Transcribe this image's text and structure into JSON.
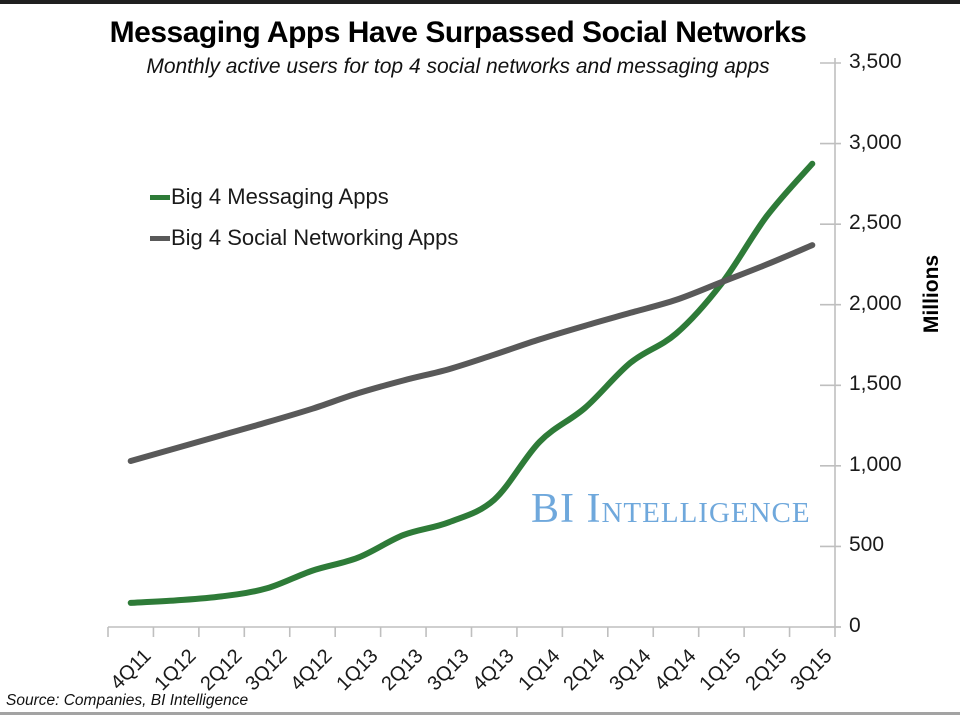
{
  "chart_data": {
    "type": "line",
    "title": "Messaging Apps Have Surpassed Social Networks",
    "subtitle": "Monthly active users for top 4 social networks and messaging apps",
    "categories": [
      "4Q11",
      "1Q12",
      "2Q12",
      "3Q12",
      "4Q12",
      "1Q13",
      "2Q13",
      "3Q13",
      "4Q13",
      "1Q14",
      "2Q14",
      "3Q14",
      "4Q14",
      "1Q15",
      "2Q15",
      "3Q15"
    ],
    "series": [
      {
        "name": "Big 4 Messaging Apps",
        "color": "#2e7b38",
        "values": [
          150,
          165,
          190,
          240,
          350,
          430,
          570,
          650,
          790,
          1150,
          1360,
          1640,
          1820,
          2130,
          2550,
          2875
        ]
      },
      {
        "name": "Big 4 Social Networking Apps",
        "color": "#595959",
        "values": [
          1030,
          1110,
          1190,
          1270,
          1355,
          1450,
          1530,
          1600,
          1690,
          1785,
          1870,
          1950,
          2030,
          2140,
          2250,
          2370
        ]
      }
    ],
    "y_axis": {
      "label": "Millions",
      "min": 0,
      "max": 3500,
      "step": 500,
      "tick_labels": [
        "0",
        "500",
        "1,000",
        "1,500",
        "2,000",
        "2,500",
        "3,000",
        "3,500"
      ],
      "side": "right"
    },
    "x_axis": {
      "tick_label_rotation_deg": -45
    },
    "grid": "off",
    "legend_position": "inside-top-left",
    "line_smoothing": "smoothed",
    "axis_color": "#bfbfbf",
    "watermark": {
      "text": "BI Intelligence",
      "color": "#6fa8dc"
    },
    "source": "Source: Companies, BI Intelligence"
  }
}
